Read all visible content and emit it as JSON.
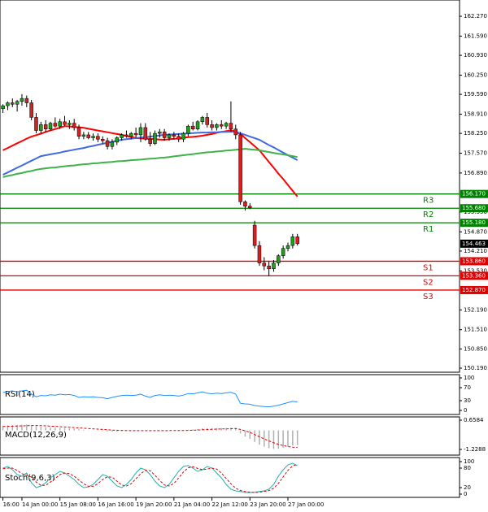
{
  "chart_data": [
    {
      "type": "candlestick",
      "categories": [
        "16:00",
        null,
        null,
        null,
        "14 Jan 00:00",
        null,
        null,
        null,
        null,
        null,
        null,
        null,
        "15 Jan 08:00",
        null,
        null,
        null,
        null,
        null,
        null,
        null,
        "16 Jan 16:00",
        null,
        null,
        null,
        null,
        null,
        null,
        null,
        "19 Jan 20:00",
        null,
        null,
        null,
        null,
        null,
        null,
        null,
        "21 Jan 04:00",
        null,
        null,
        null,
        null,
        null,
        null,
        null,
        "22 Jan 12:00",
        null,
        null,
        null,
        null,
        null,
        null,
        null,
        "23 Jan 20:00",
        null,
        null,
        null,
        null,
        null,
        null,
        null,
        "27 Jan 00:00",
        null,
        null
      ],
      "open": [
        159.1,
        159.2,
        159.3,
        159.25,
        159.35,
        159.45,
        159.3,
        158.8,
        158.35,
        158.55,
        158.4,
        158.6,
        158.5,
        158.65,
        158.55,
        158.6,
        158.45,
        158.15,
        158.2,
        158.1,
        158.15,
        158.05,
        158.0,
        157.8,
        157.95,
        158.1,
        158.2,
        158.15,
        158.25,
        158.2,
        158.45,
        158.05,
        157.9,
        158.25,
        158.3,
        158.1,
        158.2,
        158.15,
        158.05,
        158.25,
        158.5,
        158.4,
        158.65,
        158.8,
        158.55,
        158.45,
        158.55,
        158.5,
        158.6,
        158.4,
        158.2,
        155.9,
        155.75,
        155.1,
        154.4,
        153.8,
        153.7,
        153.6,
        153.8,
        154.05,
        154.3,
        154.4,
        154.7
      ],
      "high": [
        159.25,
        159.35,
        159.45,
        159.4,
        159.6,
        159.55,
        159.4,
        158.95,
        158.65,
        158.7,
        158.65,
        158.8,
        158.75,
        158.85,
        158.7,
        158.75,
        158.55,
        158.3,
        158.3,
        158.25,
        158.25,
        158.15,
        158.1,
        158.05,
        158.15,
        158.25,
        158.35,
        158.3,
        158.45,
        158.6,
        158.6,
        158.3,
        158.35,
        158.4,
        158.4,
        158.25,
        158.3,
        158.25,
        158.3,
        158.55,
        158.65,
        158.7,
        158.85,
        158.95,
        158.7,
        158.6,
        158.7,
        158.65,
        159.35,
        158.55,
        158.3,
        155.95,
        155.85,
        155.25,
        154.55,
        154.0,
        153.85,
        153.9,
        154.1,
        154.4,
        154.5,
        154.8,
        154.8
      ],
      "low": [
        158.95,
        159.05,
        159.15,
        159.0,
        159.2,
        159.15,
        158.7,
        158.25,
        158.25,
        158.3,
        158.35,
        158.45,
        158.4,
        158.5,
        158.4,
        158.35,
        158.05,
        158.05,
        158.05,
        158.0,
        157.95,
        157.9,
        157.7,
        157.7,
        157.85,
        158.0,
        158.1,
        158.05,
        158.1,
        157.95,
        158.0,
        157.8,
        157.85,
        158.1,
        158.0,
        158.0,
        158.05,
        157.95,
        157.95,
        158.15,
        158.35,
        158.35,
        158.55,
        158.45,
        158.35,
        158.35,
        158.4,
        158.4,
        158.3,
        158.05,
        155.8,
        155.6,
        155.65,
        154.3,
        153.7,
        153.55,
        153.35,
        153.5,
        153.7,
        153.95,
        154.2,
        154.3,
        154.4
      ],
      "close": [
        159.2,
        159.3,
        159.25,
        159.35,
        159.45,
        159.3,
        158.8,
        158.35,
        158.55,
        158.4,
        158.6,
        158.5,
        158.65,
        158.55,
        158.6,
        158.45,
        158.15,
        158.2,
        158.1,
        158.15,
        158.05,
        158.0,
        157.8,
        157.95,
        158.1,
        158.2,
        158.15,
        158.25,
        158.2,
        158.45,
        158.05,
        157.9,
        158.25,
        158.3,
        158.1,
        158.2,
        158.15,
        158.05,
        158.25,
        158.5,
        158.4,
        158.65,
        158.8,
        158.55,
        158.45,
        158.55,
        158.5,
        158.6,
        158.4,
        158.2,
        155.9,
        155.75,
        155.7,
        154.4,
        153.8,
        153.7,
        153.6,
        153.8,
        154.05,
        154.3,
        154.4,
        154.7,
        154.463
      ],
      "up_color": "#1f9e1f",
      "down_color": "#d42020",
      "series": [
        {
          "color": "#ff0000",
          "values": [
            157.67,
            157.75,
            157.83,
            157.91,
            157.99,
            158.07,
            158.14,
            158.19,
            158.24,
            158.3,
            158.35,
            158.4,
            158.45,
            158.5,
            158.49,
            158.47,
            158.46,
            158.44,
            158.41,
            158.38,
            158.35,
            158.32,
            158.29,
            158.26,
            158.23,
            158.2,
            158.16,
            158.13,
            158.09,
            158.08,
            158.07,
            158.06,
            158.05,
            158.04,
            158.03,
            158.05,
            158.06,
            158.08,
            158.1,
            158.12,
            158.13,
            158.15,
            158.17,
            158.2,
            158.23,
            158.27,
            158.3,
            158.33,
            158.36,
            158.3,
            158.23,
            158.09,
            157.95,
            157.81,
            157.67,
            157.47,
            157.27,
            157.07,
            156.87,
            156.68,
            156.48,
            156.28,
            156.08
          ]
        },
        {
          "color": "#4169e1",
          "values": [
            156.83,
            156.91,
            156.99,
            157.07,
            157.15,
            157.23,
            157.31,
            157.39,
            157.47,
            157.5,
            157.53,
            157.56,
            157.59,
            157.63,
            157.66,
            157.69,
            157.72,
            157.75,
            157.79,
            157.82,
            157.86,
            157.89,
            157.93,
            157.96,
            158.0,
            158.03,
            158.05,
            158.07,
            158.09,
            158.11,
            158.12,
            158.14,
            158.16,
            158.18,
            158.2,
            158.21,
            158.22,
            158.23,
            158.24,
            158.25,
            158.26,
            158.27,
            158.28,
            158.28,
            158.29,
            158.29,
            158.3,
            158.3,
            158.31,
            158.31,
            158.25,
            158.2,
            158.14,
            158.09,
            158.03,
            157.94,
            157.85,
            157.77,
            157.68,
            157.59,
            157.5,
            157.42,
            157.33
          ]
        },
        {
          "color": "#3cb34a",
          "values": [
            156.75,
            156.79,
            156.82,
            156.86,
            156.89,
            156.93,
            156.96,
            157.0,
            157.03,
            157.05,
            157.07,
            157.08,
            157.1,
            157.12,
            157.14,
            157.15,
            157.17,
            157.19,
            157.2,
            157.22,
            157.23,
            157.25,
            157.26,
            157.27,
            157.29,
            157.3,
            157.31,
            157.33,
            157.34,
            157.35,
            157.37,
            157.38,
            157.39,
            157.41,
            157.42,
            157.44,
            157.46,
            157.48,
            157.5,
            157.52,
            157.54,
            157.56,
            157.58,
            157.6,
            157.61,
            157.63,
            157.64,
            157.66,
            157.67,
            157.69,
            157.7,
            157.72,
            157.7,
            157.69,
            157.67,
            157.64,
            157.61,
            157.58,
            157.55,
            157.53,
            157.5,
            157.47,
            157.44
          ]
        }
      ],
      "levels": [
        {
          "name": "R3",
          "value": 156.17,
          "label": "156.170",
          "color": "#008000"
        },
        {
          "name": "R2",
          "value": 155.68,
          "label": "155.680",
          "color": "#008000"
        },
        {
          "name": "R1",
          "value": 155.18,
          "label": "155.180",
          "color": "#008000"
        },
        {
          "name": "S1",
          "value": 153.86,
          "label": "153.860",
          "color": "#e00000"
        },
        {
          "name": "S2",
          "value": 153.36,
          "label": "153.360",
          "color": "#e00000"
        },
        {
          "name": "S3",
          "value": 152.87,
          "label": "152.870",
          "color": "#e00000"
        }
      ],
      "last": {
        "value": 154.463,
        "label": "154.463"
      },
      "ylim": [
        150.05,
        162.83
      ],
      "yticks": [
        {
          "value": 162.27,
          "label": "162.270"
        },
        {
          "value": 161.59,
          "label": "161.590"
        },
        {
          "value": 160.93,
          "label": "160.930"
        },
        {
          "value": 160.25,
          "label": "160.250"
        },
        {
          "value": 159.59,
          "label": "159.590"
        },
        {
          "value": 158.91,
          "label": "158.910"
        },
        {
          "value": 158.25,
          "label": "158.250"
        },
        {
          "value": 157.57,
          "label": "157.570"
        },
        {
          "value": 156.89,
          "label": "156.890"
        },
        {
          "value": 155.55,
          "label": "155.550"
        },
        {
          "value": 154.87,
          "label": "154.870"
        },
        {
          "value": 154.21,
          "label": "154.210"
        },
        {
          "value": 153.53,
          "label": "153.530"
        },
        {
          "value": 152.19,
          "label": "152.190"
        },
        {
          "value": 151.51,
          "label": "151.510"
        },
        {
          "value": 150.85,
          "label": "150.850"
        },
        {
          "value": 150.19,
          "label": "150.190"
        }
      ]
    },
    {
      "type": "line",
      "title": "RSI(14)",
      "ylim": [
        0,
        100
      ],
      "yticks": [
        100,
        70,
        30,
        0
      ],
      "series": [
        {
          "color": "#1e90ff",
          "values": [
            55,
            58,
            60,
            57,
            60,
            62,
            50,
            42,
            46,
            45,
            48,
            47,
            50,
            48,
            49,
            46,
            40,
            42,
            41,
            42,
            40,
            39,
            36,
            40,
            43,
            46,
            47,
            46,
            47,
            50,
            44,
            40,
            46,
            48,
            46,
            47,
            46,
            44,
            47,
            52,
            51,
            54,
            57,
            53,
            51,
            53,
            52,
            54,
            56,
            50,
            22,
            20,
            19,
            15,
            13,
            12,
            11,
            13,
            16,
            20,
            24,
            28,
            26
          ]
        }
      ]
    },
    {
      "type": "macd",
      "title": "MACD(12,26,9)",
      "ylim": [
        -1.2288,
        0.6584
      ],
      "yticks": [
        0.6584,
        -1.2288
      ],
      "series": [
        {
          "color": "#b0b0b0",
          "values": [
            0.3,
            0.32,
            0.33,
            0.34,
            0.36,
            0.38,
            0.33,
            0.27,
            0.23,
            0.2,
            0.18,
            0.16,
            0.15,
            0.14,
            0.13,
            0.11,
            0.07,
            0.04,
            0.02,
            0.0,
            -0.02,
            -0.04,
            -0.07,
            -0.08,
            -0.07,
            -0.05,
            -0.04,
            -0.03,
            -0.02,
            0.0,
            -0.01,
            -0.03,
            -0.02,
            -0.01,
            -0.01,
            0.0,
            0.0,
            0.0,
            0.01,
            0.04,
            0.06,
            0.09,
            0.13,
            0.14,
            0.14,
            0.14,
            0.14,
            0.15,
            0.17,
            0.15,
            -0.2,
            -0.4,
            -0.55,
            -0.75,
            -0.92,
            -1.05,
            -1.15,
            -1.2,
            -1.18,
            -1.12,
            -1.05,
            -0.98,
            -0.95
          ]
        },
        {
          "color": "#e00000",
          "dashed": true,
          "values": [
            0.25,
            0.26,
            0.27,
            0.28,
            0.29,
            0.3,
            0.31,
            0.31,
            0.3,
            0.29,
            0.27,
            0.26,
            0.24,
            0.22,
            0.2,
            0.18,
            0.16,
            0.14,
            0.12,
            0.1,
            0.08,
            0.06,
            0.04,
            0.02,
            0.01,
            0.0,
            -0.01,
            -0.02,
            -0.02,
            -0.02,
            -0.02,
            -0.02,
            -0.02,
            -0.02,
            -0.02,
            -0.01,
            -0.01,
            -0.01,
            -0.01,
            0.0,
            0.01,
            0.02,
            0.04,
            0.05,
            0.07,
            0.08,
            0.09,
            0.1,
            0.11,
            0.12,
            0.06,
            -0.03,
            -0.13,
            -0.27,
            -0.41,
            -0.55,
            -0.68,
            -0.8,
            -0.9,
            -0.98,
            -1.04,
            -1.08,
            -1.1
          ]
        }
      ]
    },
    {
      "type": "line",
      "title": "Stoch(9,6,3)",
      "ylim": [
        0,
        100
      ],
      "yticks": [
        100,
        80,
        20,
        0
      ],
      "series": [
        {
          "color": "#20b2aa",
          "values": [
            80,
            85,
            75,
            60,
            55,
            65,
            35,
            20,
            25,
            35,
            50,
            60,
            70,
            65,
            55,
            45,
            30,
            20,
            22,
            30,
            45,
            60,
            55,
            40,
            25,
            20,
            30,
            45,
            65,
            80,
            75,
            60,
            40,
            25,
            20,
            30,
            50,
            70,
            85,
            88,
            80,
            70,
            75,
            85,
            80,
            65,
            50,
            30,
            15,
            10,
            8,
            5,
            5,
            6,
            8,
            10,
            15,
            30,
            55,
            75,
            90,
            95,
            88
          ]
        },
        {
          "color": "#e00000",
          "dashed": true,
          "values": [
            78,
            80,
            80,
            73,
            63,
            58,
            52,
            37,
            27,
            27,
            37,
            48,
            60,
            65,
            63,
            55,
            43,
            32,
            24,
            24,
            32,
            45,
            53,
            52,
            40,
            28,
            25,
            32,
            47,
            63,
            73,
            72,
            58,
            42,
            28,
            25,
            33,
            50,
            68,
            81,
            84,
            79,
            75,
            77,
            80,
            77,
            65,
            48,
            32,
            18,
            11,
            8,
            6,
            5,
            6,
            8,
            11,
            18,
            33,
            53,
            73,
            87,
            91
          ]
        }
      ]
    }
  ]
}
